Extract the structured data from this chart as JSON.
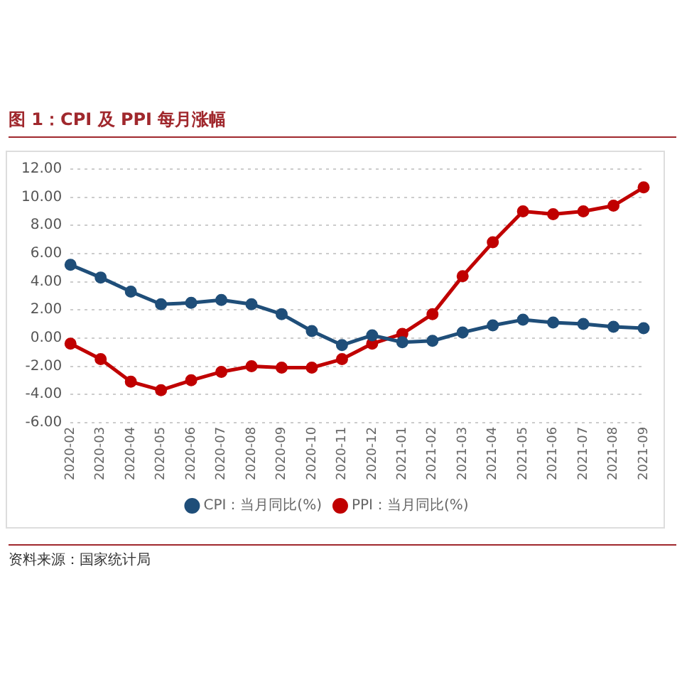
{
  "chart_data": {
    "type": "line",
    "title": "图 1：CPI 及 PPI 每月涨幅",
    "categories": [
      "2020-02",
      "2020-03",
      "2020-04",
      "2020-05",
      "2020-06",
      "2020-07",
      "2020-08",
      "2020-09",
      "2020-10",
      "2020-11",
      "2020-12",
      "2021-01",
      "2021-02",
      "2021-03",
      "2021-04",
      "2021-05",
      "2021-06",
      "2021-07",
      "2021-08",
      "2021-09"
    ],
    "series": [
      {
        "name": "CPI：当月同比(%)",
        "color": "#1f4e79",
        "values": [
          5.2,
          4.3,
          3.3,
          2.4,
          2.5,
          2.7,
          2.4,
          1.7,
          0.5,
          -0.5,
          0.2,
          -0.3,
          -0.2,
          0.4,
          0.9,
          1.3,
          1.1,
          1.0,
          0.8,
          0.7
        ]
      },
      {
        "name": "PPI：当月同比(%)",
        "color": "#c00000",
        "values": [
          -0.4,
          -1.5,
          -3.1,
          -3.7,
          -3.0,
          -2.4,
          -2.0,
          -2.1,
          -2.1,
          -1.5,
          -0.4,
          0.3,
          1.7,
          4.4,
          6.8,
          9.0,
          8.8,
          9.0,
          9.4,
          10.7
        ]
      }
    ],
    "ylim": [
      -6,
      12
    ],
    "yticks": [
      {
        "value": -6,
        "label": "-6.00"
      },
      {
        "value": -4,
        "label": "-4.00"
      },
      {
        "value": -2,
        "label": "-2.00"
      },
      {
        "value": 0,
        "label": "0.00"
      },
      {
        "value": 2,
        "label": "2.00"
      },
      {
        "value": 4,
        "label": "4.00"
      },
      {
        "value": 6,
        "label": "6.00"
      },
      {
        "value": 8,
        "label": "8.00"
      },
      {
        "value": 10,
        "label": "10.00"
      },
      {
        "value": 12,
        "label": "12.00"
      }
    ],
    "grid": "y",
    "legend": "bottom",
    "marker": "circle",
    "line_style": "solid",
    "annotations": [
      "资料来源：国家统计局"
    ]
  }
}
